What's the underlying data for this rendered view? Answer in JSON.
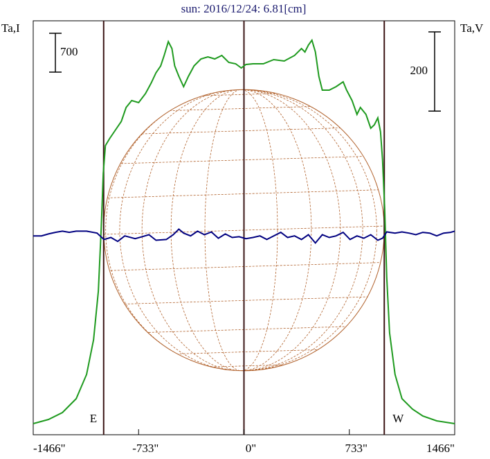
{
  "chart_data": {
    "type": "line",
    "title": "sun: 2016/12/24: 6.81[cm]",
    "ylabel": "Ta,I",
    "y2label": "Ta,V",
    "xlim": [
      -1466,
      1466
    ],
    "xticks": [
      {
        "value": -1466,
        "label": "-1466\""
      },
      {
        "value": -733,
        "label": "-733\""
      },
      {
        "value": 0,
        "label": "0\""
      },
      {
        "value": 733,
        "label": "733\""
      },
      {
        "value": 1466,
        "label": "1466\""
      }
    ],
    "ylim": [
      -200,
      7262.5
    ],
    "y2lim": [
      -500,
      545
    ],
    "center_line": 0,
    "limbs": [
      {
        "value": -976,
        "label": "E"
      },
      {
        "value": 976,
        "label": "W"
      }
    ],
    "scale_bars": [
      {
        "value": 700
      },
      {
        "value": 200,
        "axis": "y2"
      }
    ],
    "series": [
      {
        "color": "#1e9a1e",
        "x": [
          -1466,
          -1360,
          -1263,
          -1167,
          -1095,
          -1046,
          -1013,
          -993,
          -979,
          -964,
          -935,
          -902,
          -853,
          -820,
          -781,
          -733,
          -685,
          -646,
          -612,
          -579,
          -555,
          -526,
          -501,
          -482,
          -453,
          -420,
          -386,
          -347,
          -299,
          -251,
          -203,
          -154,
          -106,
          -58,
          -19,
          14,
          63,
          135,
          207,
          280,
          352,
          400,
          424,
          448,
          473,
          497,
          521,
          545,
          593,
          641,
          690,
          714,
          752,
          786,
          810,
          849,
          882,
          907,
          931,
          950,
          964,
          979,
          993,
          1013,
          1051,
          1099,
          1172,
          1244,
          1341,
          1466
        ],
        "values": [
          0,
          75,
          200,
          450,
          888,
          1513,
          2388,
          3513,
          4513,
          5013,
          5138,
          5263,
          5450,
          5700,
          5825,
          5788,
          5950,
          6138,
          6325,
          6450,
          6638,
          6888,
          6763,
          6450,
          6263,
          6075,
          6263,
          6450,
          6575,
          6613,
          6575,
          6638,
          6513,
          6488,
          6413,
          6475,
          6488,
          6488,
          6563,
          6538,
          6638,
          6763,
          6700,
          6825,
          6913,
          6700,
          6263,
          6013,
          6013,
          6075,
          6163,
          6013,
          5825,
          5575,
          5700,
          5575,
          5325,
          5388,
          5513,
          5263,
          4763,
          3888,
          2638,
          1638,
          888,
          450,
          263,
          138,
          50,
          0
        ]
      },
      {
        "color": "#000080",
        "axis": "y2",
        "x": [
          -1466,
          -1408,
          -1360,
          -1312,
          -1263,
          -1215,
          -1167,
          -1095,
          -1022,
          -974,
          -926,
          -878,
          -829,
          -757,
          -709,
          -661,
          -612,
          -540,
          -492,
          -453,
          -420,
          -371,
          -323,
          -275,
          -227,
          -178,
          -130,
          -82,
          -34,
          14,
          63,
          111,
          159,
          207,
          256,
          304,
          352,
          400,
          448,
          497,
          545,
          593,
          641,
          690,
          738,
          786,
          834,
          882,
          931,
          964,
          993,
          1051,
          1099,
          1148,
          1196,
          1244,
          1292,
          1341,
          1389,
          1437,
          1466
        ],
        "values": [
          2,
          2,
          7,
          11,
          14,
          11,
          14,
          14,
          9,
          -7,
          -2,
          -12,
          2,
          -5,
          0,
          5,
          -9,
          -7,
          5,
          19,
          9,
          2,
          14,
          5,
          12,
          -4,
          7,
          -2,
          0,
          -5,
          -2,
          2,
          -7,
          2,
          11,
          -2,
          2,
          -7,
          5,
          -16,
          5,
          -2,
          2,
          11,
          -7,
          2,
          -4,
          5,
          -9,
          -4,
          12,
          9,
          12,
          9,
          5,
          11,
          9,
          2,
          9,
          11,
          14
        ]
      }
    ]
  }
}
